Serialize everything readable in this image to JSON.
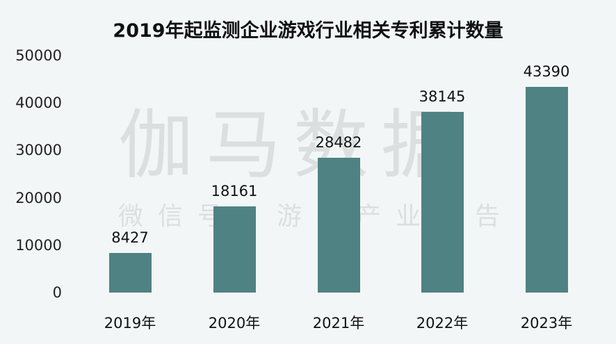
{
  "watermark": {
    "main": "伽马数据",
    "sub": "微信号：游戏产业报告"
  },
  "chart_data": {
    "type": "bar",
    "title": "2019年起监测企业游戏行业相关专利累计数量",
    "xlabel": "",
    "ylabel": "",
    "categories": [
      "2019年",
      "2020年",
      "2021年",
      "2022年",
      "2023年"
    ],
    "values": [
      8427,
      18161,
      28482,
      38145,
      43390
    ],
    "value_labels": [
      "8427",
      "18161",
      "28482",
      "38145",
      "43390"
    ],
    "yticks": [
      "50000",
      "40000",
      "30000",
      "20000",
      "10000",
      "0"
    ],
    "ylim": [
      0,
      50000
    ],
    "grid": false,
    "legend": null,
    "bar_color": "#4f8283"
  }
}
